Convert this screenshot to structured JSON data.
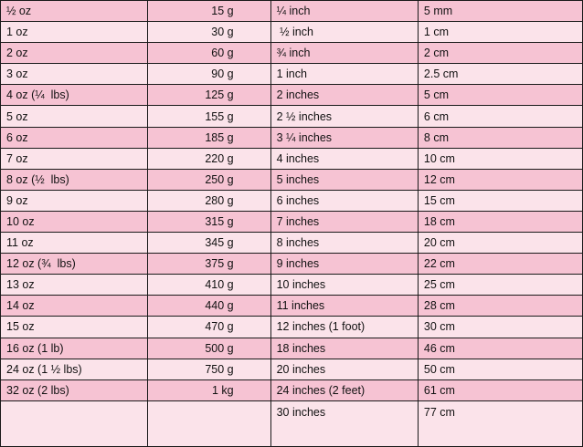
{
  "table": {
    "rows": [
      {
        "oz": "½  oz",
        "g": "15 g",
        "inch": "¼ inch",
        "cm": "5 mm"
      },
      {
        "oz": "1 oz",
        "g": "30 g",
        "inch": " ½ inch",
        "cm": "1 cm"
      },
      {
        "oz": "2 oz",
        "g": "60 g",
        "inch": "¾ inch",
        "cm": "2 cm"
      },
      {
        "oz": "3 oz",
        "g": "90 g",
        "inch": "1 inch",
        "cm": "2.5 cm"
      },
      {
        "oz": "4 oz (¼  lbs)",
        "g": "125 g",
        "inch": "2 inches",
        "cm": "5 cm"
      },
      {
        "oz": "5 oz",
        "g": "155 g",
        "inch": "2 ½ inches",
        "cm": "6 cm"
      },
      {
        "oz": "6 oz",
        "g": "185 g",
        "inch": "3 ¼ inches",
        "cm": "8 cm"
      },
      {
        "oz": "7 oz",
        "g": "220 g",
        "inch": "4 inches",
        "cm": "10 cm"
      },
      {
        "oz": "8 oz (½  lbs)",
        "g": "250 g",
        "inch": "5 inches",
        "cm": "12 cm"
      },
      {
        "oz": "9 oz",
        "g": "280 g",
        "inch": "6 inches",
        "cm": "15 cm"
      },
      {
        "oz": "10 oz",
        "g": "315 g",
        "inch": "7 inches",
        "cm": "18 cm"
      },
      {
        "oz": "11 oz",
        "g": "345 g",
        "inch": "8 inches",
        "cm": "20 cm"
      },
      {
        "oz": "12 oz (¾  lbs)",
        "g": "375 g",
        "inch": "9 inches",
        "cm": "22 cm"
      },
      {
        "oz": "13 oz",
        "g": "410 g",
        "inch": "10 inches",
        "cm": "25 cm"
      },
      {
        "oz": "14 oz",
        "g": "440 g",
        "inch": "11 inches",
        "cm": "28 cm"
      },
      {
        "oz": "15 oz",
        "g": "470 g",
        "inch": "12 inches (1 foot)",
        "cm": "30 cm"
      },
      {
        "oz": "16 oz (1 lb)",
        "g": "500 g",
        "inch": "18 inches",
        "cm": "46 cm"
      },
      {
        "oz": "24 oz (1 ½ lbs)",
        "g": "750 g",
        "inch": "20 inches",
        "cm": "50 cm"
      },
      {
        "oz": "32 oz (2 lbs)",
        "g": "1 kg",
        "inch": "24 inches (2 feet)",
        "cm": "61 cm"
      },
      {
        "oz": "",
        "g": "",
        "inch": "30 inches",
        "cm": "77 cm"
      }
    ]
  }
}
